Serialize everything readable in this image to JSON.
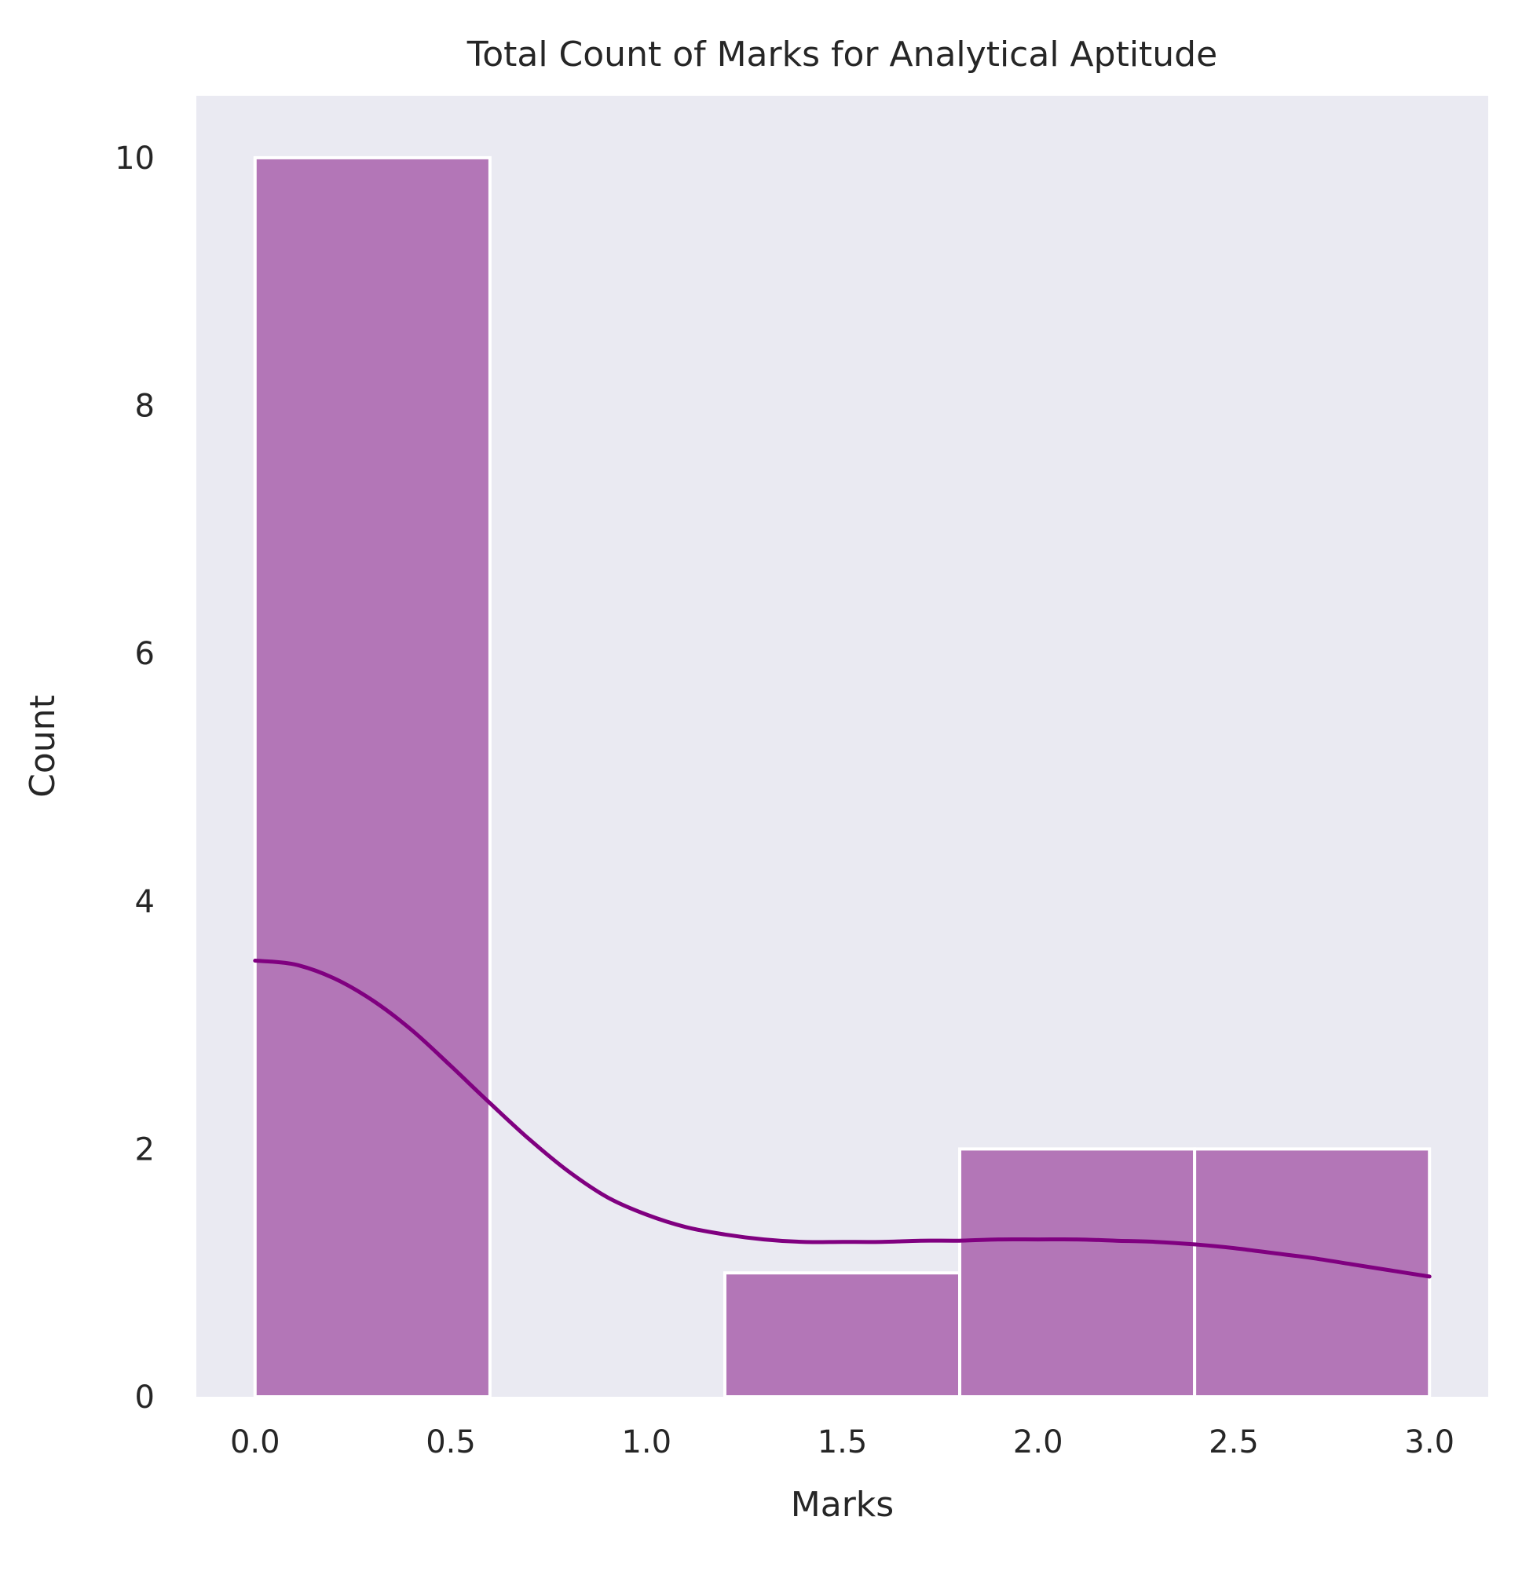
{
  "chart_data": {
    "type": "bar",
    "subtype": "histogram-with-kde",
    "title": "Total Count of Marks for Analytical Aptitude",
    "xlabel": "Marks",
    "ylabel": "Count",
    "xlim": [
      -0.15,
      3.15
    ],
    "ylim": [
      0,
      10.5
    ],
    "xticks": [
      0.0,
      0.5,
      1.0,
      1.5,
      2.0,
      2.5,
      3.0
    ],
    "xtick_labels": [
      "0.0",
      "0.5",
      "1.0",
      "1.5",
      "2.0",
      "2.5",
      "3.0"
    ],
    "yticks": [
      0,
      2,
      4,
      6,
      8,
      10
    ],
    "ytick_labels": [
      "0",
      "2",
      "4",
      "6",
      "8",
      "10"
    ],
    "grid": false,
    "bins": [
      {
        "x0": 0.0,
        "x1": 0.6,
        "count": 10
      },
      {
        "x0": 0.6,
        "x1": 1.2,
        "count": 0
      },
      {
        "x0": 1.2,
        "x1": 1.8,
        "count": 1
      },
      {
        "x0": 1.8,
        "x1": 2.4,
        "count": 2
      },
      {
        "x0": 2.4,
        "x1": 3.0,
        "count": 2
      }
    ],
    "kde": {
      "x": [
        0.0,
        0.1,
        0.2,
        0.3,
        0.4,
        0.5,
        0.6,
        0.7,
        0.8,
        0.9,
        1.0,
        1.1,
        1.2,
        1.3,
        1.4,
        1.5,
        1.6,
        1.7,
        1.8,
        1.9,
        2.0,
        2.1,
        2.2,
        2.3,
        2.4,
        2.5,
        2.6,
        2.7,
        2.8,
        2.9,
        3.0
      ],
      "y": [
        3.52,
        3.49,
        3.38,
        3.2,
        2.96,
        2.67,
        2.37,
        2.08,
        1.82,
        1.61,
        1.47,
        1.37,
        1.31,
        1.27,
        1.25,
        1.25,
        1.25,
        1.26,
        1.26,
        1.27,
        1.27,
        1.27,
        1.26,
        1.25,
        1.23,
        1.2,
        1.16,
        1.12,
        1.07,
        1.02,
        0.97
      ]
    },
    "colors": {
      "background": "#eaeaf2",
      "bar_fill": "#b376b7",
      "bar_edge": "#ffffff",
      "kde_line": "#800080",
      "text": "#262626"
    }
  }
}
